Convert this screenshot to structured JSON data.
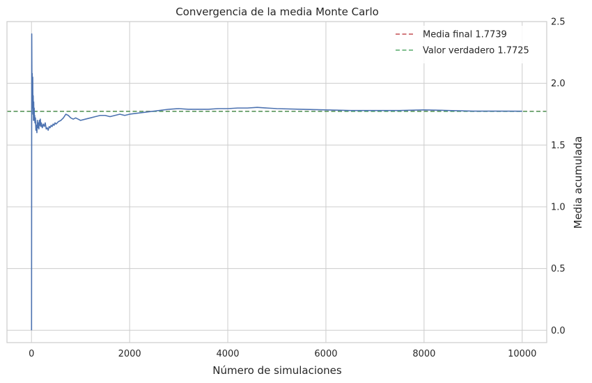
{
  "chart_data": {
    "type": "line",
    "title": "Convergencia de la media Monte Carlo",
    "xlabel": "Número de simulaciones",
    "ylabel": "Media acumulada",
    "xlim": [
      -500,
      10500
    ],
    "ylim": [
      -0.1,
      2.5
    ],
    "xticks": [
      0,
      2000,
      4000,
      6000,
      8000,
      10000
    ],
    "yticks": [
      0.0,
      0.5,
      1.0,
      1.5,
      2.0,
      2.5
    ],
    "ytick_labels": [
      "0.0",
      "0.5",
      "1.0",
      "1.5",
      "2.0",
      "2.5"
    ],
    "yaxis_side": "right",
    "grid": true,
    "legend_position": "top-right",
    "series": [
      {
        "color": "#4c72b0",
        "style": "solid",
        "x": [
          1,
          5,
          10,
          15,
          20,
          25,
          30,
          35,
          40,
          45,
          50,
          55,
          60,
          65,
          70,
          80,
          90,
          100,
          110,
          120,
          130,
          140,
          150,
          160,
          170,
          180,
          190,
          200,
          220,
          240,
          260,
          280,
          300,
          320,
          340,
          360,
          380,
          400,
          420,
          440,
          460,
          480,
          500,
          550,
          600,
          650,
          700,
          750,
          800,
          850,
          900,
          950,
          1000,
          1100,
          1200,
          1300,
          1400,
          1500,
          1600,
          1700,
          1800,
          1900,
          2000,
          2200,
          2400,
          2600,
          2800,
          3000,
          3200,
          3400,
          3600,
          3800,
          4000,
          4200,
          4400,
          4600,
          4800,
          5000,
          5500,
          6000,
          6500,
          7000,
          7500,
          8000,
          8500,
          9000,
          9500,
          10000
        ],
        "values": [
          0.0,
          2.4,
          1.9,
          2.08,
          1.8,
          2.05,
          1.75,
          1.9,
          1.7,
          1.85,
          1.72,
          1.8,
          1.7,
          1.74,
          1.68,
          1.72,
          1.62,
          1.66,
          1.6,
          1.7,
          1.64,
          1.68,
          1.63,
          1.7,
          1.66,
          1.71,
          1.65,
          1.68,
          1.64,
          1.67,
          1.65,
          1.68,
          1.63,
          1.64,
          1.62,
          1.65,
          1.64,
          1.66,
          1.65,
          1.67,
          1.66,
          1.68,
          1.67,
          1.69,
          1.7,
          1.72,
          1.75,
          1.74,
          1.72,
          1.71,
          1.72,
          1.71,
          1.7,
          1.71,
          1.72,
          1.73,
          1.74,
          1.74,
          1.73,
          1.74,
          1.75,
          1.74,
          1.75,
          1.76,
          1.77,
          1.78,
          1.79,
          1.795,
          1.79,
          1.79,
          1.79,
          1.795,
          1.795,
          1.8,
          1.8,
          1.805,
          1.8,
          1.795,
          1.79,
          1.785,
          1.78,
          1.78,
          1.78,
          1.785,
          1.78,
          1.775,
          1.775,
          1.774
        ]
      }
    ],
    "reference_lines": [
      {
        "name": "Media final 1.7739",
        "value": 1.7739,
        "color": "#c44e52",
        "style": "dashed"
      },
      {
        "name": "Valor verdadero 1.7725",
        "value": 1.7725,
        "color": "#55a868",
        "style": "dashed"
      }
    ]
  }
}
